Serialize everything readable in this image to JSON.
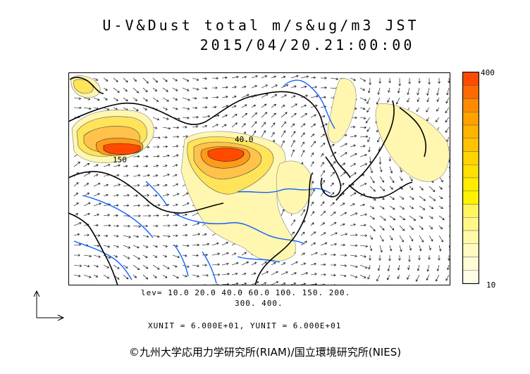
{
  "title": "U-V&Dust total m/s&ug/m3 JST",
  "datetime": "2015/04/20.21:00:00",
  "contour_levels_line1": "lev= 10.0 20.0 40.0 60.0 100. 150. 200.",
  "contour_levels_line2": "300. 400.",
  "units_text": "XUNIT = 6.000E+01, YUNIT = 6.000E+01",
  "legend": {
    "max_label": "400",
    "min_label": "10",
    "colors": [
      "#ff4a00",
      "#ff6a00",
      "#ff8a00",
      "#ffa200",
      "#ffb400",
      "#ffc400",
      "#ffd400",
      "#ffe000",
      "#ffec00",
      "#fff200",
      "#fff560",
      "#fff889",
      "#fffaa8",
      "#fffbc2",
      "#fffcd6",
      "#fffde8"
    ]
  },
  "map_labels": [
    "150",
    "40.0"
  ],
  "copyright": "©九州大学応用力学研究所(RIAM)/国立環境研究所(NIES)",
  "colors": {
    "coastline": "#000000",
    "river": "#1060ff",
    "dust_low": "#fff6b0",
    "dust_high": "#ff4a00"
  },
  "icons": [
    "reference-vector-icon"
  ]
}
